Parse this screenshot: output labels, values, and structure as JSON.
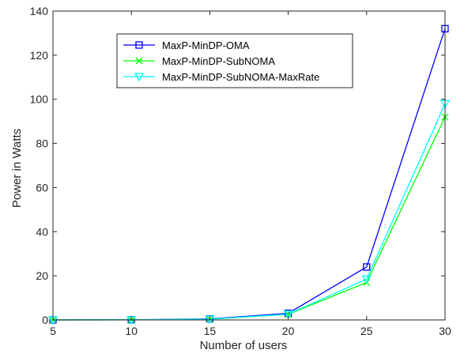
{
  "chart_data": {
    "type": "line",
    "title": "",
    "xlabel": "Number of users",
    "ylabel": "Power in Watts",
    "x": [
      5,
      10,
      15,
      20,
      25,
      30
    ],
    "xlim": [
      5,
      30
    ],
    "ylim": [
      0,
      140
    ],
    "xticks": [
      5,
      10,
      15,
      20,
      25,
      30
    ],
    "yticks": [
      0,
      20,
      40,
      60,
      80,
      100,
      120,
      140
    ],
    "grid": false,
    "legend_position": "top-left",
    "series": [
      {
        "name": "MaxP-MinDP-OMA",
        "values": [
          0,
          0.1,
          0.5,
          3,
          24,
          132
        ],
        "color": "#0000ff",
        "marker": "square"
      },
      {
        "name": "MaxP-MinDP-SubNOMA",
        "values": [
          0,
          0.05,
          0.3,
          2.5,
          17,
          92
        ],
        "color": "#00ff00",
        "marker": "x"
      },
      {
        "name": "MaxP-MinDP-SubNOMA-MaxRate",
        "values": [
          0,
          0.05,
          0.35,
          2.6,
          18.5,
          98
        ],
        "color": "#00ffff",
        "marker": "triangle-down"
      }
    ]
  }
}
